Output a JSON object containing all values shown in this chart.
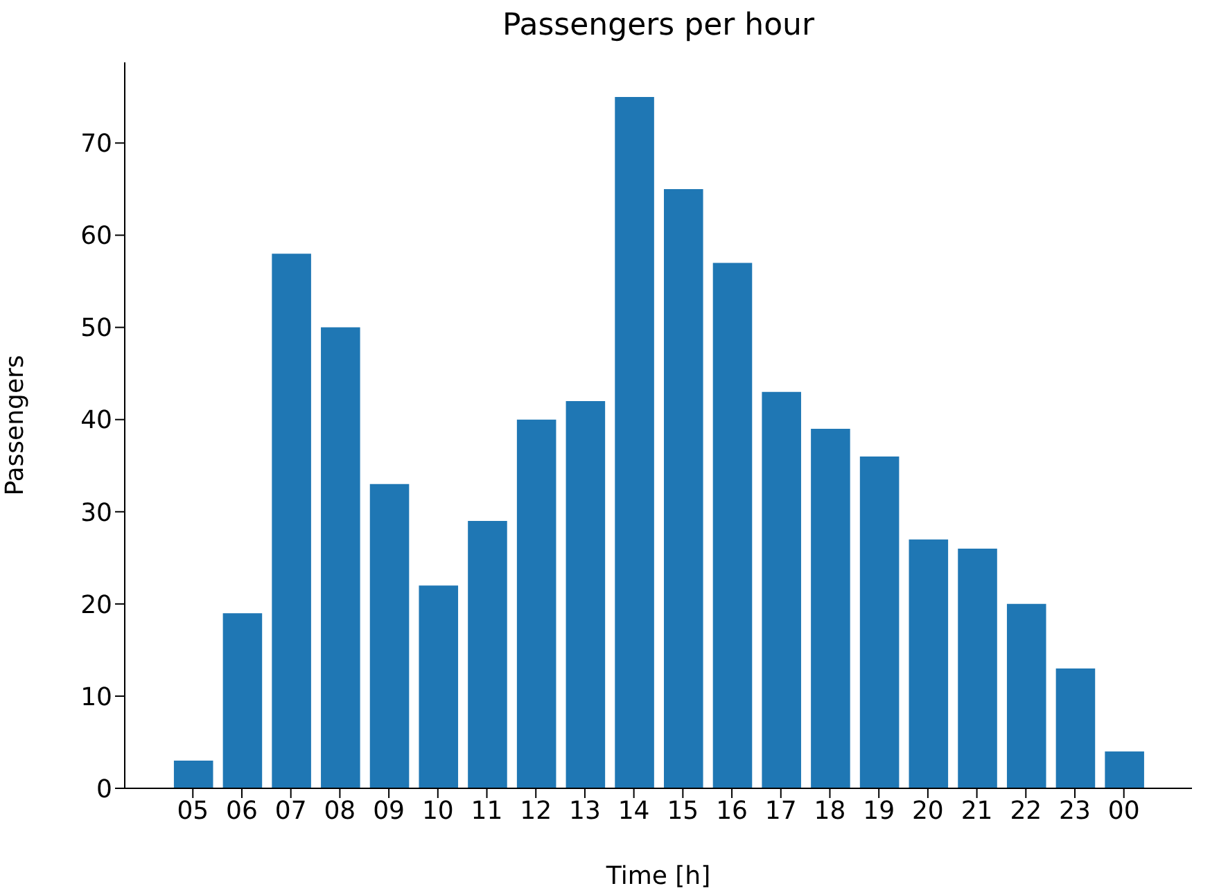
{
  "chart_data": {
    "type": "bar",
    "title": "Passengers per hour",
    "xlabel": "Time [h]",
    "ylabel": "Passengers",
    "categories": [
      "05",
      "06",
      "07",
      "08",
      "09",
      "10",
      "11",
      "12",
      "13",
      "14",
      "15",
      "16",
      "17",
      "18",
      "19",
      "20",
      "21",
      "22",
      "23",
      "00"
    ],
    "values": [
      3,
      19,
      58,
      50,
      33,
      22,
      29,
      40,
      42,
      75,
      65,
      57,
      43,
      39,
      36,
      27,
      26,
      20,
      13,
      4
    ],
    "color": "#1f77b4",
    "ylim": [
      0,
      78.75
    ],
    "yticks": [
      0,
      10,
      20,
      30,
      40,
      50,
      60,
      70
    ],
    "grid": false,
    "legend": false
  }
}
